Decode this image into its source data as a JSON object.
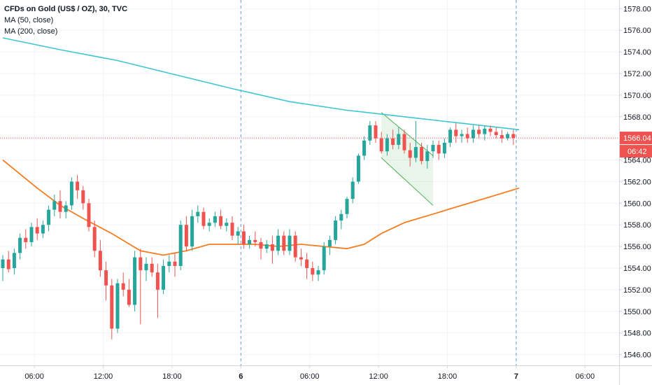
{
  "legend": {
    "symbol": "CFDs on Gold (US$ / OZ), 30, TVC",
    "ma50": "MA (50, close)",
    "ma200": "MA (200, close)"
  },
  "price_badge": {
    "price": "1566.04",
    "countdown": "06:42"
  },
  "colors": {
    "up": "#26a69a",
    "down": "#ef5350",
    "ma50": "#f57c1f",
    "ma200": "#3ec6d3",
    "price_line": "#ef5350",
    "session_line": "#5b9bd5",
    "flag": "#4caf50"
  },
  "chart_data": {
    "type": "candlestick",
    "symbol": "CFDs on Gold (US$ / OZ)",
    "interval": "30",
    "source": "TVC",
    "ylim": [
      1545.0,
      1578.8
    ],
    "y_ticks": [
      "1546.00",
      "1548.00",
      "1550.00",
      "1552.00",
      "1554.00",
      "1556.00",
      "1558.00",
      "1560.00",
      "1562.00",
      "1564.00",
      "1566.00",
      "1568.00",
      "1570.00",
      "1572.00",
      "1574.00",
      "1576.00",
      "1578.00"
    ],
    "x_ticks": [
      {
        "label": "06:00",
        "bar": 5.5,
        "bold": false
      },
      {
        "label": "12:00",
        "bar": 17.5,
        "bold": false
      },
      {
        "label": "18:00",
        "bar": 29.5,
        "bold": false
      },
      {
        "label": "6",
        "bar": 41.5,
        "bold": true
      },
      {
        "label": "06:00",
        "bar": 53.5,
        "bold": false
      },
      {
        "label": "12:00",
        "bar": 65.5,
        "bold": false
      },
      {
        "label": "18:00",
        "bar": 77.5,
        "bold": false
      },
      {
        "label": "7",
        "bar": 89.5,
        "bold": true
      },
      {
        "label": "06:00",
        "bar": 101.5,
        "bold": false
      }
    ],
    "session_breaks": [
      41.5,
      89.5
    ],
    "bar_range": [
      0,
      113
    ],
    "last_price": 1566.04,
    "candles": [
      [
        1554.0,
        1555.2,
        1552.8,
        1554.8
      ],
      [
        1554.8,
        1555.6,
        1553.6,
        1553.9
      ],
      [
        1554.0,
        1555.8,
        1553.4,
        1555.4
      ],
      [
        1555.4,
        1557.2,
        1554.8,
        1556.8
      ],
      [
        1556.8,
        1557.6,
        1555.8,
        1556.4
      ],
      [
        1556.4,
        1558.2,
        1556.0,
        1557.8
      ],
      [
        1557.8,
        1558.6,
        1556.6,
        1557.2
      ],
      [
        1557.2,
        1558.4,
        1556.8,
        1558.0
      ],
      [
        1558.0,
        1559.8,
        1557.4,
        1559.4
      ],
      [
        1559.4,
        1560.8,
        1558.8,
        1560.2
      ],
      [
        1560.2,
        1561.2,
        1558.6,
        1559.2
      ],
      [
        1559.2,
        1560.2,
        1558.6,
        1559.8
      ],
      [
        1559.8,
        1562.4,
        1559.4,
        1562.0
      ],
      [
        1562.0,
        1562.6,
        1560.4,
        1561.2
      ],
      [
        1561.2,
        1561.6,
        1559.4,
        1560.0
      ],
      [
        1560.0,
        1560.4,
        1557.4,
        1557.8
      ],
      [
        1557.8,
        1558.4,
        1555.0,
        1555.6
      ],
      [
        1555.6,
        1556.6,
        1553.2,
        1553.8
      ],
      [
        1553.8,
        1554.6,
        1551.0,
        1552.4
      ],
      [
        1552.4,
        1553.0,
        1547.4,
        1548.4
      ],
      [
        1548.4,
        1553.0,
        1548.0,
        1552.6
      ],
      [
        1552.6,
        1553.6,
        1551.4,
        1552.0
      ],
      [
        1552.0,
        1553.0,
        1550.4,
        1550.6
      ],
      [
        1550.6,
        1555.6,
        1550.0,
        1555.0
      ],
      [
        1555.0,
        1555.8,
        1548.8,
        1553.8
      ],
      [
        1553.8,
        1555.0,
        1552.8,
        1554.4
      ],
      [
        1554.4,
        1555.0,
        1553.2,
        1553.6
      ],
      [
        1553.6,
        1554.4,
        1549.4,
        1552.0
      ],
      [
        1552.0,
        1554.8,
        1551.6,
        1554.2
      ],
      [
        1554.2,
        1555.2,
        1553.6,
        1554.6
      ],
      [
        1554.6,
        1555.4,
        1553.2,
        1554.2
      ],
      [
        1554.2,
        1558.4,
        1553.8,
        1558.0
      ],
      [
        1558.0,
        1558.8,
        1555.6,
        1556.0
      ],
      [
        1556.0,
        1559.4,
        1555.6,
        1558.8
      ],
      [
        1558.8,
        1559.8,
        1558.2,
        1559.2
      ],
      [
        1559.2,
        1559.6,
        1557.6,
        1557.9
      ],
      [
        1557.9,
        1558.6,
        1557.4,
        1558.2
      ],
      [
        1558.2,
        1559.2,
        1557.8,
        1558.8
      ],
      [
        1558.8,
        1559.4,
        1557.6,
        1557.9
      ],
      [
        1557.9,
        1558.6,
        1557.4,
        1558.2
      ],
      [
        1558.2,
        1558.8,
        1556.6,
        1557.0
      ],
      [
        1557.0,
        1557.8,
        1556.2,
        1557.4
      ],
      [
        1557.4,
        1558.0,
        1555.8,
        1556.2
      ],
      [
        1556.2,
        1557.0,
        1555.8,
        1556.6
      ],
      [
        1556.6,
        1557.4,
        1556.0,
        1556.4
      ],
      [
        1556.4,
        1556.8,
        1554.8,
        1555.8
      ],
      [
        1555.8,
        1556.6,
        1555.4,
        1556.2
      ],
      [
        1556.2,
        1557.0,
        1554.4,
        1555.6
      ],
      [
        1555.6,
        1557.6,
        1555.2,
        1557.0
      ],
      [
        1557.0,
        1557.4,
        1555.2,
        1555.6
      ],
      [
        1555.6,
        1557.6,
        1555.2,
        1557.0
      ],
      [
        1557.0,
        1557.4,
        1554.6,
        1555.0
      ],
      [
        1555.0,
        1555.8,
        1554.2,
        1554.8
      ],
      [
        1554.8,
        1555.4,
        1553.0,
        1554.0
      ],
      [
        1554.0,
        1554.6,
        1552.8,
        1553.4
      ],
      [
        1553.4,
        1554.2,
        1552.8,
        1553.8
      ],
      [
        1553.8,
        1556.4,
        1553.4,
        1556.0
      ],
      [
        1556.0,
        1557.0,
        1555.2,
        1556.6
      ],
      [
        1556.6,
        1558.8,
        1556.2,
        1558.4
      ],
      [
        1558.4,
        1559.4,
        1557.6,
        1559.0
      ],
      [
        1559.0,
        1560.6,
        1558.6,
        1560.4
      ],
      [
        1560.4,
        1562.4,
        1560.0,
        1562.0
      ],
      [
        1562.0,
        1564.6,
        1561.8,
        1564.4
      ],
      [
        1564.4,
        1566.2,
        1564.0,
        1565.8
      ],
      [
        1565.8,
        1567.6,
        1565.4,
        1567.2
      ],
      [
        1567.2,
        1567.6,
        1565.6,
        1566.0
      ],
      [
        1566.0,
        1566.6,
        1564.6,
        1564.8
      ],
      [
        1564.8,
        1566.4,
        1564.4,
        1566.0
      ],
      [
        1566.0,
        1566.8,
        1565.0,
        1565.4
      ],
      [
        1565.4,
        1567.0,
        1565.0,
        1566.4
      ],
      [
        1566.4,
        1566.8,
        1564.6,
        1564.9
      ],
      [
        1564.9,
        1565.6,
        1563.4,
        1564.2
      ],
      [
        1564.2,
        1567.6,
        1563.8,
        1565.2
      ],
      [
        1565.2,
        1565.6,
        1563.6,
        1563.9
      ],
      [
        1563.9,
        1565.4,
        1563.2,
        1564.8
      ],
      [
        1564.8,
        1565.8,
        1564.2,
        1565.4
      ],
      [
        1565.4,
        1565.8,
        1564.0,
        1564.6
      ],
      [
        1564.6,
        1566.0,
        1564.2,
        1565.6
      ],
      [
        1565.6,
        1567.0,
        1565.2,
        1566.8
      ],
      [
        1566.8,
        1567.4,
        1565.6,
        1566.2
      ],
      [
        1566.2,
        1566.8,
        1565.6,
        1566.4
      ],
      [
        1566.4,
        1567.0,
        1565.6,
        1566.0
      ],
      [
        1566.0,
        1567.2,
        1565.6,
        1566.8
      ],
      [
        1566.8,
        1567.2,
        1566.0,
        1566.4
      ],
      [
        1566.4,
        1567.2,
        1565.8,
        1566.9
      ],
      [
        1566.9,
        1567.2,
        1566.2,
        1566.6
      ],
      [
        1566.6,
        1567.0,
        1566.0,
        1566.3
      ],
      [
        1566.3,
        1566.8,
        1565.6,
        1566.0
      ],
      [
        1566.0,
        1566.6,
        1565.8,
        1566.4
      ],
      [
        1566.4,
        1566.8,
        1565.4,
        1566.04
      ]
    ],
    "ma200": {
      "points": [
        [
          0,
          1575.3
        ],
        [
          10,
          1574.2
        ],
        [
          20,
          1573.2
        ],
        [
          30,
          1571.9
        ],
        [
          40,
          1570.6
        ],
        [
          50,
          1569.4
        ],
        [
          60,
          1568.6
        ],
        [
          70,
          1568.0
        ],
        [
          80,
          1567.4
        ],
        [
          90,
          1566.8
        ]
      ]
    },
    "ma50": {
      "points": [
        [
          0,
          1564.0
        ],
        [
          6,
          1561.4
        ],
        [
          10,
          1559.8
        ],
        [
          14,
          1558.6
        ],
        [
          19,
          1557.2
        ],
        [
          24,
          1555.6
        ],
        [
          28,
          1555.2
        ],
        [
          32,
          1555.6
        ],
        [
          36,
          1556.2
        ],
        [
          40,
          1556.2
        ],
        [
          44,
          1556.2
        ],
        [
          48,
          1556.0
        ],
        [
          52,
          1556.2
        ],
        [
          56,
          1556.0
        ],
        [
          60,
          1555.8
        ],
        [
          63,
          1556.2
        ],
        [
          66,
          1557.2
        ],
        [
          70,
          1558.2
        ],
        [
          75,
          1559.0
        ],
        [
          80,
          1559.8
        ],
        [
          85,
          1560.6
        ],
        [
          90,
          1561.4
        ]
      ]
    },
    "drawings": {
      "bull_flag": {
        "upper": [
          [
            66,
            1568.4
          ],
          [
            75,
            1564.4
          ]
        ],
        "lower": [
          [
            66,
            1564.2
          ],
          [
            75,
            1559.8
          ]
        ],
        "fill_poly": [
          [
            66,
            1568.4
          ],
          [
            75,
            1564.4
          ],
          [
            75,
            1559.8
          ],
          [
            66,
            1564.2
          ]
        ]
      }
    }
  }
}
